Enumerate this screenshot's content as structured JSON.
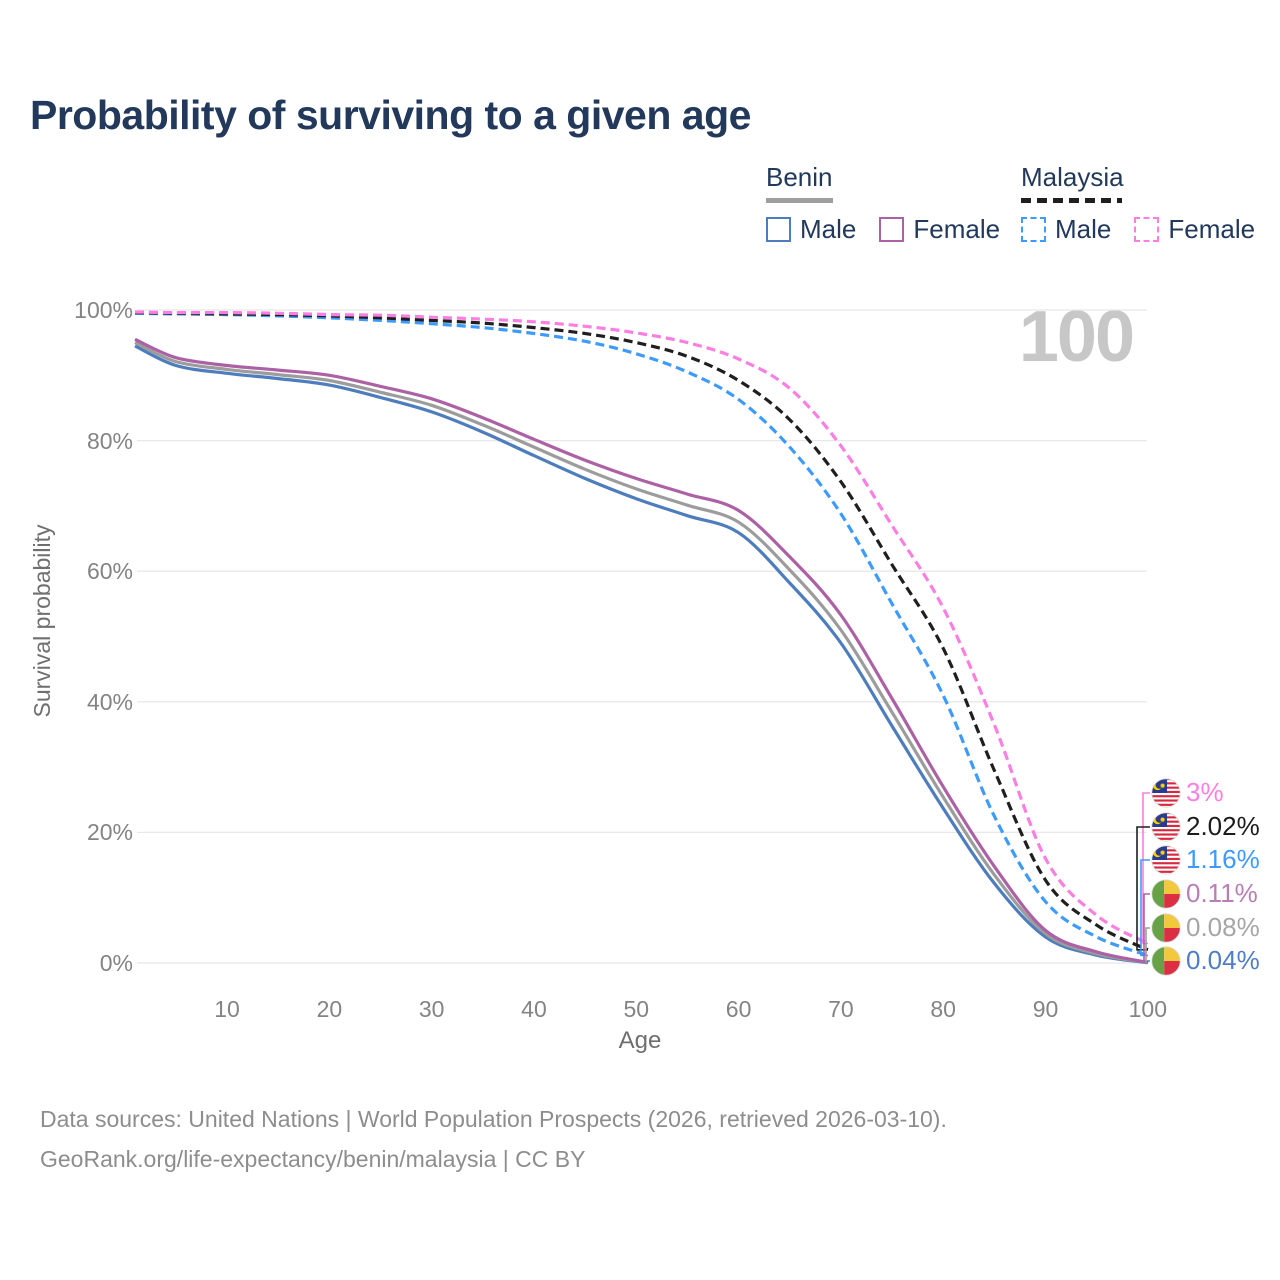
{
  "title": "Probability of surviving to a given age",
  "watermark": "100",
  "legend": {
    "groups": [
      {
        "label": "Benin",
        "style": "solid",
        "items": [
          {
            "label": "Male",
            "color": "#4e7dbe",
            "dashed": false
          },
          {
            "label": "Female",
            "color": "#ad61a5",
            "dashed": false
          }
        ]
      },
      {
        "label": "Malaysia",
        "style": "dashed",
        "items": [
          {
            "label": "Male",
            "color": "#3d9bff",
            "dashed": true
          },
          {
            "label": "Female",
            "color": "#fb7ee2",
            "dashed": true
          }
        ]
      }
    ]
  },
  "chart_data": {
    "type": "line",
    "title": "Probability of surviving to a given age",
    "xlabel": "Age",
    "ylabel": "Survival probability",
    "xlim": [
      1,
      100
    ],
    "ylim": [
      0,
      100
    ],
    "grid": "horizontal-only",
    "x_ticks": [
      10,
      20,
      30,
      40,
      50,
      60,
      70,
      80,
      90,
      100
    ],
    "y_ticks": [
      {
        "value": 0,
        "label": "0%"
      },
      {
        "value": 20,
        "label": "20%"
      },
      {
        "value": 40,
        "label": "40%"
      },
      {
        "value": 60,
        "label": "60%"
      },
      {
        "value": 80,
        "label": "80%"
      },
      {
        "value": 100,
        "label": "100%"
      }
    ],
    "ages": [
      1,
      5,
      10,
      15,
      20,
      25,
      30,
      35,
      40,
      45,
      50,
      55,
      60,
      65,
      70,
      75,
      80,
      85,
      90,
      95,
      100
    ],
    "series": [
      {
        "name": "Benin Male",
        "country": "Benin",
        "sex": "Male",
        "color": "#4e7dbe",
        "dashed": false,
        "flag": "benin-flag-icon",
        "end_label": "0.04%",
        "end_label_color": "#4e7dc9",
        "values": [
          94.5,
          91.5,
          90.3,
          89.5,
          88.5,
          86.6,
          84.4,
          81.3,
          77.7,
          74.2,
          71.1,
          68.5,
          65.9,
          58.2,
          49.0,
          36.3,
          23.7,
          12.2,
          4.0,
          1.2,
          0.04
        ]
      },
      {
        "name": "Benin Both sexes",
        "country": "Benin",
        "sex": "Both",
        "color": "#9c9c9c",
        "dashed": false,
        "flag": "benin-flag-icon",
        "end_label": "0.08%",
        "end_label_color": "#a6a6a6",
        "values": [
          95.0,
          92.1,
          90.9,
          90.1,
          89.2,
          87.4,
          85.4,
          82.4,
          79.0,
          75.6,
          72.6,
          70.1,
          67.5,
          60.2,
          51.0,
          38.4,
          25.4,
          13.5,
          4.5,
          1.4,
          0.08
        ]
      },
      {
        "name": "Benin Female",
        "country": "Benin",
        "sex": "Female",
        "color": "#ad61a5",
        "dashed": false,
        "flag": "benin-flag-icon",
        "end_label": "0.11%",
        "end_label_color": "#b87fb5",
        "values": [
          95.5,
          92.7,
          91.5,
          90.8,
          90.0,
          88.3,
          86.4,
          83.5,
          80.2,
          77.0,
          74.2,
          71.8,
          69.3,
          62.2,
          53.3,
          40.5,
          27.0,
          14.8,
          5.0,
          1.7,
          0.11
        ]
      },
      {
        "name": "Malaysia Male",
        "country": "Malaysia",
        "sex": "Male",
        "color": "#3d9bff",
        "dashed": true,
        "flag": "malaysia-flag-icon",
        "end_label": "1.16%",
        "end_label_color": "#3d9bff",
        "values": [
          99.5,
          99.4,
          99.3,
          99.1,
          98.8,
          98.4,
          97.9,
          97.3,
          96.4,
          95.2,
          93.3,
          90.5,
          86.3,
          79.0,
          68.8,
          55.0,
          41.0,
          22.5,
          9.4,
          4.0,
          1.16
        ]
      },
      {
        "name": "Malaysia Both sexes",
        "country": "Malaysia",
        "sex": "Both",
        "color": "#1f1f1f",
        "dashed": true,
        "flag": "malaysia-flag-icon",
        "end_label": "2.02%",
        "end_label_color": "#1c1c1c",
        "values": [
          99.6,
          99.5,
          99.4,
          99.3,
          99.1,
          98.8,
          98.4,
          98.0,
          97.3,
          96.4,
          95.0,
          92.9,
          89.2,
          83.2,
          73.7,
          61.0,
          48.2,
          29.5,
          12.7,
          5.8,
          2.02
        ]
      },
      {
        "name": "Malaysia Female",
        "country": "Malaysia",
        "sex": "Female",
        "color": "#fb7ee2",
        "dashed": true,
        "flag": "malaysia-flag-icon",
        "end_label": "3%",
        "end_label_color": "#fb7ee2",
        "values": [
          99.7,
          99.6,
          99.6,
          99.5,
          99.3,
          99.2,
          98.9,
          98.6,
          98.2,
          97.5,
          96.5,
          95.0,
          92.5,
          88.0,
          79.2,
          67.0,
          54.4,
          36.5,
          16.0,
          7.3,
          3.0
        ]
      }
    ]
  },
  "source": {
    "line1": "Data sources: United Nations | World Population Prospects (2026, retrieved 2026-03-10).",
    "line2": "GeoRank.org/life-expectancy/benin/malaysia | CC BY"
  }
}
